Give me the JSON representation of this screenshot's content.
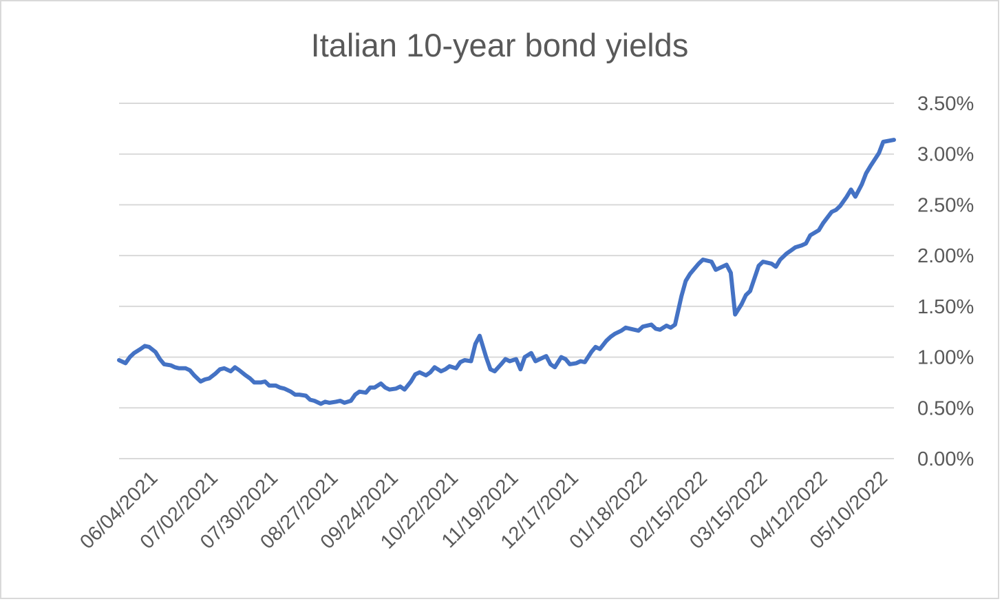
{
  "chart_data": {
    "type": "line",
    "title": "Italian 10-year bond yields",
    "xlabel": "",
    "ylabel": "",
    "ylim": [
      0,
      0.035
    ],
    "y_ticks": [
      "0.00%",
      "0.50%",
      "1.00%",
      "1.50%",
      "2.00%",
      "2.50%",
      "3.00%",
      "3.50%"
    ],
    "y_tick_values": [
      0,
      0.005,
      0.01,
      0.015,
      0.02,
      0.025,
      0.03,
      0.035
    ],
    "y_axis_side": "right",
    "grid": true,
    "legend": "none",
    "x_range": [
      "05/21/2021",
      "05/17/2022"
    ],
    "x_ticks": [
      "06/04/2021",
      "07/02/2021",
      "07/30/2021",
      "08/27/2021",
      "09/24/2021",
      "10/22/2021",
      "11/19/2021",
      "12/17/2021",
      "01/18/2022",
      "02/15/2022",
      "03/15/2022",
      "04/12/2022",
      "05/10/2022"
    ],
    "line_color": "#4472c4",
    "grid_color": "#d9d9d9",
    "series": [
      {
        "x": [
          "05/21/2021",
          "05/24/2021",
          "05/26/2021",
          "05/28/2021",
          "05/31/2021",
          "06/02/2021",
          "06/04/2021",
          "06/07/2021",
          "06/09/2021",
          "06/11/2021",
          "06/14/2021",
          "06/16/2021",
          "06/18/2021",
          "06/21/2021",
          "06/23/2021",
          "06/25/2021",
          "06/28/2021",
          "06/30/2021",
          "07/02/2021",
          "07/05/2021",
          "07/07/2021",
          "07/09/2021",
          "07/12/2021",
          "07/14/2021",
          "07/16/2021",
          "07/19/2021",
          "07/21/2021",
          "07/23/2021",
          "07/26/2021",
          "07/28/2021",
          "07/30/2021",
          "08/02/2021",
          "08/04/2021",
          "08/06/2021",
          "08/09/2021",
          "08/11/2021",
          "08/13/2021",
          "08/16/2021",
          "08/18/2021",
          "08/20/2021",
          "08/23/2021",
          "08/25/2021",
          "08/27/2021",
          "08/30/2021",
          "09/01/2021",
          "09/03/2021",
          "09/06/2021",
          "09/08/2021",
          "09/10/2021",
          "09/13/2021",
          "09/15/2021",
          "09/17/2021",
          "09/20/2021",
          "09/22/2021",
          "09/24/2021",
          "09/27/2021",
          "09/29/2021",
          "10/01/2021",
          "10/04/2021",
          "10/06/2021",
          "10/08/2021",
          "10/11/2021",
          "10/13/2021",
          "10/15/2021",
          "10/18/2021",
          "10/20/2021",
          "10/22/2021",
          "10/25/2021",
          "10/27/2021",
          "10/29/2021",
          "11/01/2021",
          "11/03/2021",
          "11/05/2021",
          "11/08/2021",
          "11/10/2021",
          "11/12/2021",
          "11/15/2021",
          "11/17/2021",
          "11/19/2021",
          "11/22/2021",
          "11/24/2021",
          "11/26/2021",
          "11/29/2021",
          "12/01/2021",
          "12/03/2021",
          "12/06/2021",
          "12/08/2021",
          "12/10/2021",
          "12/13/2021",
          "12/15/2021",
          "12/17/2021",
          "12/20/2021",
          "12/22/2021",
          "12/24/2021",
          "12/27/2021",
          "12/29/2021",
          "12/31/2021",
          "01/03/2022",
          "01/05/2022",
          "01/07/2022",
          "01/10/2022",
          "01/12/2022",
          "01/14/2022",
          "01/18/2022",
          "01/20/2022",
          "01/24/2022",
          "01/26/2022",
          "01/28/2022",
          "01/31/2022",
          "02/02/2022",
          "02/04/2022",
          "02/07/2022",
          "02/09/2022",
          "02/11/2022",
          "02/15/2022",
          "02/17/2022",
          "02/21/2022",
          "02/23/2022",
          "02/25/2022",
          "02/28/2022",
          "03/02/2022",
          "03/04/2022",
          "03/07/2022",
          "03/09/2022",
          "03/11/2022",
          "03/15/2022",
          "03/17/2022",
          "03/21/2022",
          "03/23/2022",
          "03/25/2022",
          "03/28/2022",
          "03/30/2022",
          "04/01/2022",
          "04/04/2022",
          "04/06/2022",
          "04/08/2022",
          "04/12/2022",
          "04/14/2022",
          "04/18/2022",
          "04/20/2022",
          "04/22/2022",
          "04/25/2022",
          "04/27/2022",
          "04/29/2022",
          "05/02/2022",
          "05/04/2022",
          "05/06/2022",
          "05/10/2022",
          "05/12/2022",
          "05/17/2022"
        ],
        "y": [
          0.0097,
          0.0094,
          0.01,
          0.0104,
          0.0108,
          0.0111,
          0.011,
          0.0105,
          0.0098,
          0.0093,
          0.0092,
          0.009,
          0.0089,
          0.0089,
          0.0087,
          0.0082,
          0.0076,
          0.0078,
          0.0079,
          0.0084,
          0.0088,
          0.0089,
          0.0086,
          0.009,
          0.0087,
          0.0082,
          0.0079,
          0.0075,
          0.0075,
          0.0076,
          0.0072,
          0.0072,
          0.007,
          0.0069,
          0.0066,
          0.0063,
          0.0063,
          0.0062,
          0.0058,
          0.0057,
          0.0054,
          0.0056,
          0.0055,
          0.0056,
          0.0057,
          0.0055,
          0.0057,
          0.0063,
          0.0066,
          0.0065,
          0.007,
          0.007,
          0.0074,
          0.007,
          0.0068,
          0.0069,
          0.0071,
          0.0068,
          0.0076,
          0.0083,
          0.0085,
          0.0082,
          0.0085,
          0.009,
          0.0086,
          0.0088,
          0.0091,
          0.0089,
          0.0095,
          0.0097,
          0.0096,
          0.0113,
          0.0121,
          0.01,
          0.0088,
          0.0086,
          0.0093,
          0.0098,
          0.0096,
          0.0098,
          0.0088,
          0.01,
          0.0104,
          0.0096,
          0.0098,
          0.0101,
          0.0093,
          0.009,
          0.01,
          0.0098,
          0.0093,
          0.0094,
          0.0096,
          0.0095,
          0.0105,
          0.011,
          0.0108,
          0.0116,
          0.012,
          0.0123,
          0.0126,
          0.0129,
          0.0128,
          0.0126,
          0.013,
          0.0132,
          0.0128,
          0.0127,
          0.0131,
          0.0129,
          0.0132,
          0.016,
          0.0175,
          0.0182,
          0.0192,
          0.0196,
          0.0194,
          0.0186,
          0.0188,
          0.0191,
          0.0183,
          0.0142,
          0.0152,
          0.0161,
          0.0165,
          0.019,
          0.0194,
          0.0192,
          0.0189,
          0.0196,
          0.0202,
          0.0205,
          0.0208,
          0.021,
          0.0212,
          0.022,
          0.0225,
          0.0232,
          0.0243,
          0.0245,
          0.0249,
          0.0258,
          0.0265,
          0.0258,
          0.027,
          0.0281,
          0.0288,
          0.0301,
          0.0312,
          0.0314
        ]
      }
    ]
  }
}
